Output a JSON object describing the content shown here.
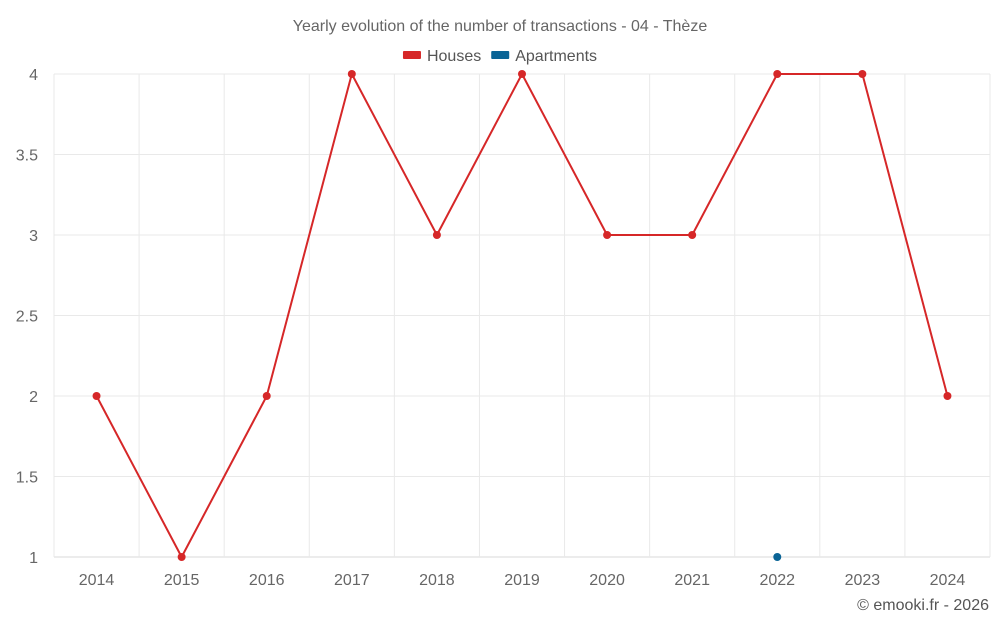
{
  "chart_data": {
    "type": "line",
    "title": "Yearly evolution of the number of transactions - 04 - Thèze",
    "xlabel": "",
    "ylabel": "",
    "categories": [
      "2014",
      "2015",
      "2016",
      "2017",
      "2018",
      "2019",
      "2020",
      "2021",
      "2022",
      "2023",
      "2024"
    ],
    "ylim": [
      1,
      4
    ],
    "yticks": [
      1,
      1.5,
      2,
      2.5,
      3,
      3.5,
      4
    ],
    "ytick_labels": [
      "1",
      "1.5",
      "2",
      "2.5",
      "3",
      "3.5",
      "4"
    ],
    "grid": true,
    "legend": "top-center",
    "series": [
      {
        "name": "Houses",
        "color": "#d62728",
        "values": [
          2,
          1,
          2,
          4,
          3,
          4,
          3,
          3,
          4,
          4,
          2
        ]
      },
      {
        "name": "Apartments",
        "color": "#0a6496",
        "values": [
          null,
          null,
          null,
          null,
          null,
          null,
          null,
          null,
          1,
          null,
          null
        ]
      }
    ]
  },
  "credit": "© emooki.fr - 2026"
}
